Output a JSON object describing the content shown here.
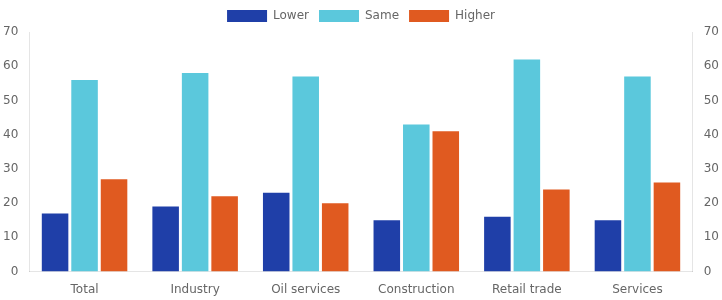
{
  "chart_data": {
    "type": "bar",
    "categories": [
      "Total",
      "Industry",
      "Oil services",
      "Construction",
      "Retail trade",
      "Services"
    ],
    "series": [
      {
        "name": "Lower",
        "color": "#1f3fa8",
        "values": [
          17,
          19,
          23,
          15,
          16,
          15
        ]
      },
      {
        "name": "Same",
        "color": "#5bc8dc",
        "values": [
          56,
          58,
          57,
          43,
          62,
          57
        ]
      },
      {
        "name": "Higher",
        "color": "#e05a20",
        "values": [
          27,
          22,
          20,
          41,
          24,
          26
        ]
      }
    ],
    "ylim": [
      0,
      70
    ],
    "yticks": [
      0,
      10,
      20,
      30,
      40,
      50,
      60,
      70
    ],
    "y2lim": [
      0,
      70
    ],
    "y2ticks": [
      0,
      10,
      20,
      30,
      40,
      50,
      60,
      70
    ],
    "grid": false,
    "legend": "upper center"
  }
}
